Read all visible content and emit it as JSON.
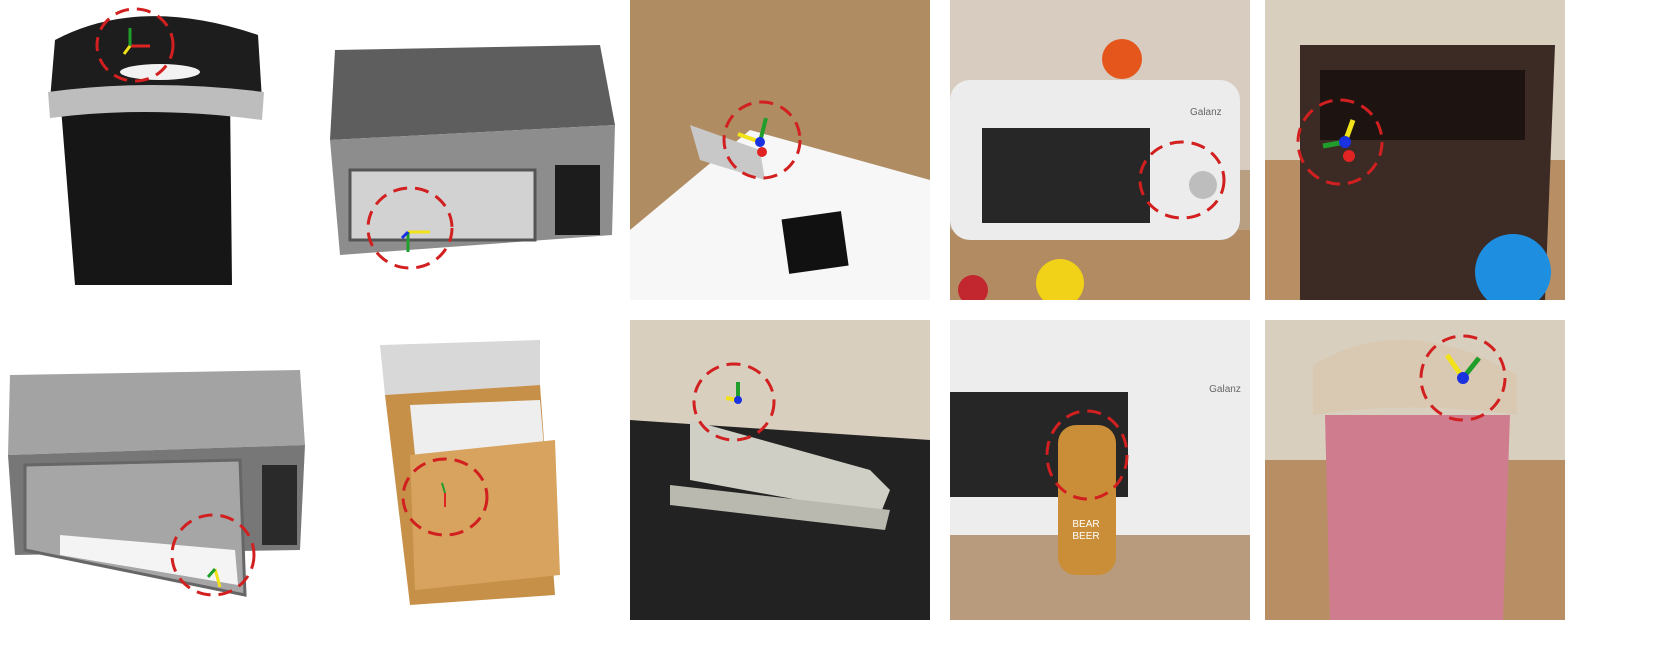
{
  "figure": {
    "colors": {
      "ring": "#d21f1f",
      "axis_x": "#e02424",
      "axis_y": "#f2e21a",
      "axis_z": "#1f9e2c",
      "origin": "#1a32e0"
    },
    "sim_panels": [
      {
        "object": "trash-can",
        "style": "rendered"
      },
      {
        "object": "microwave",
        "style": "rendered"
      },
      {
        "object": "microwave-open-door",
        "style": "rendered"
      },
      {
        "object": "cabinet-open-drawer",
        "style": "rendered"
      }
    ],
    "real_panels": [
      {
        "object": "stapler-on-paper"
      },
      {
        "object": "microwave-with-fruit",
        "brand": "Galanz"
      },
      {
        "object": "bedside-cabinet"
      },
      {
        "object": "stapler-on-tablecloth"
      },
      {
        "object": "microwave-with-can",
        "brand": "Galanz",
        "can_text": [
          "BEAR",
          "BEER"
        ]
      },
      {
        "object": "pink-trash-can"
      }
    ]
  }
}
